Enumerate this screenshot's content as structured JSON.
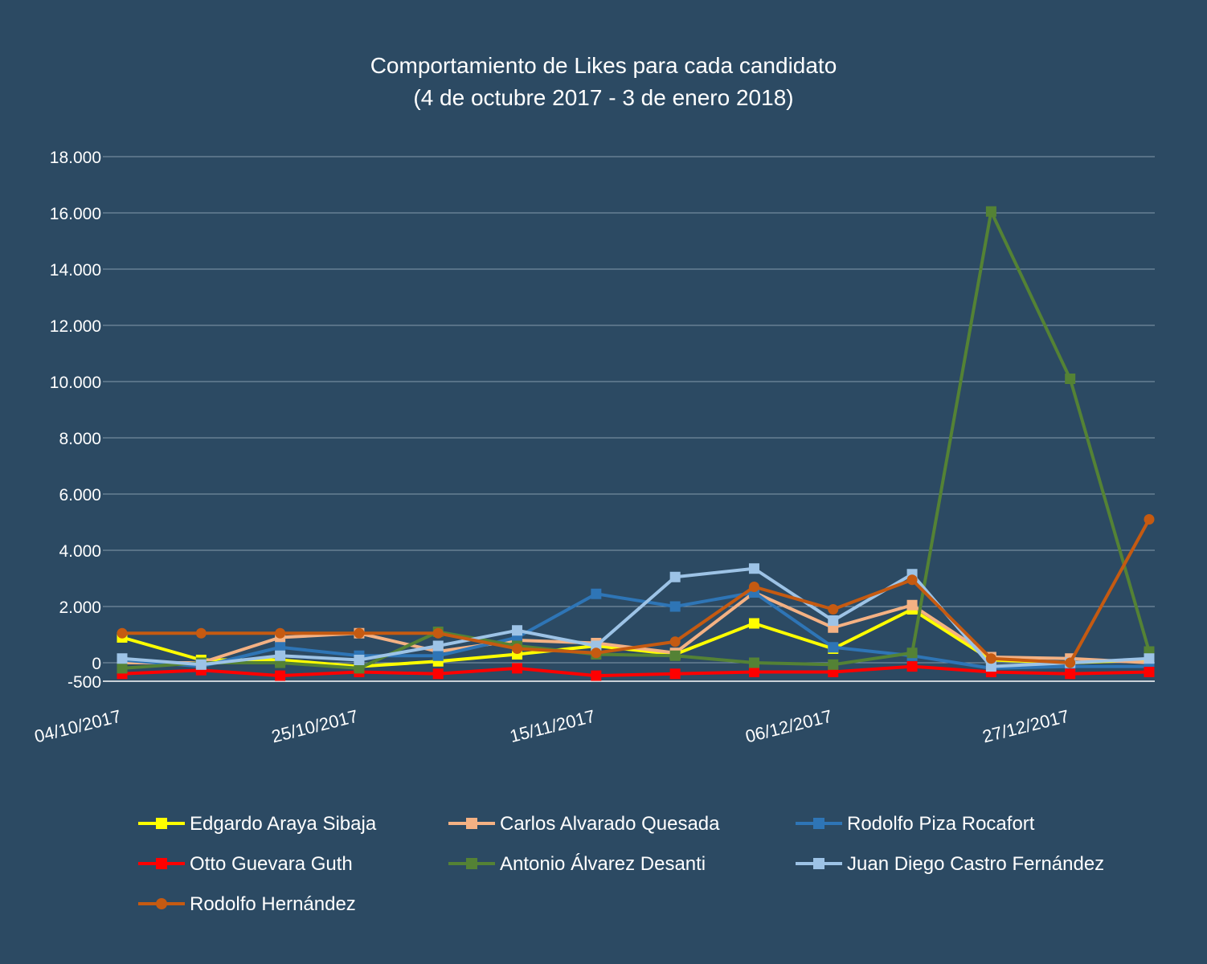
{
  "chart_data": {
    "type": "line",
    "title": "Comportamiento de Likes para cada candidato",
    "subtitle": "(4 de octubre 2017 - 3 de enero 2018)",
    "xlabel": "",
    "ylabel": "",
    "x": [
      "04/10/2017",
      "11/10/2017",
      "18/10/2017",
      "25/10/2017",
      "01/11/2017",
      "08/11/2017",
      "15/11/2017",
      "22/11/2017",
      "29/11/2017",
      "06/12/2017",
      "13/12/2017",
      "20/12/2017",
      "27/12/2017",
      "03/01/2018"
    ],
    "x_tick_labels": [
      "04/10/2017",
      "25/10/2017",
      "15/11/2017",
      "06/12/2017",
      "27/12/2017"
    ],
    "y_tick_values": [
      -500,
      0,
      2000,
      4000,
      6000,
      8000,
      10000,
      12000,
      14000,
      16000,
      18000
    ],
    "y_tick_labels": [
      "-500",
      "0",
      "2.000",
      "4.000",
      "6.000",
      "8.000",
      "10.000",
      "12.000",
      "14.000",
      "16.000",
      "18.000"
    ],
    "ylim": [
      -500,
      18000
    ],
    "grid": "horizontal",
    "legend_position": "bottom",
    "series": [
      {
        "name": "Edgardo Araya Sibaja",
        "color": "#ffff00",
        "marker": "square",
        "values": [
          900,
          100,
          100,
          -100,
          50,
          300,
          600,
          300,
          1400,
          500,
          1900,
          100,
          0,
          100
        ]
      },
      {
        "name": "Carlos Alvarado Quesada",
        "color": "#f4b183",
        "marker": "square",
        "values": [
          0,
          0,
          900,
          1050,
          400,
          800,
          700,
          350,
          2500,
          1250,
          2050,
          200,
          150,
          0
        ]
      },
      {
        "name": "Rodolfo Piza Rocafort",
        "color": "#2e75b6",
        "marker": "square",
        "values": [
          100,
          -100,
          550,
          250,
          250,
          900,
          2450,
          2000,
          2500,
          550,
          250,
          -150,
          -100,
          -100
        ]
      },
      {
        "name": "Otto Guevara Guth",
        "color": "#ff0000",
        "marker": "square",
        "values": [
          -300,
          -200,
          -350,
          -250,
          -300,
          -150,
          -350,
          -300,
          -250,
          -250,
          -100,
          -250,
          -300,
          -250
        ]
      },
      {
        "name": "Antonio Álvarez Desanti",
        "color": "#548235",
        "marker": "square",
        "values": [
          -150,
          0,
          0,
          -150,
          1100,
          600,
          300,
          250,
          0,
          -50,
          350,
          16050,
          10100,
          400
        ]
      },
      {
        "name": "Juan Diego Castro Fernández",
        "color": "#9dc3e6",
        "marker": "square",
        "values": [
          150,
          -50,
          250,
          100,
          600,
          1150,
          600,
          3050,
          3350,
          1500,
          3150,
          -100,
          0,
          150
        ]
      },
      {
        "name": "Rodolfo Hernández",
        "color": "#c55a11",
        "marker": "circle",
        "values": [
          1050,
          1050,
          1050,
          1050,
          1050,
          500,
          350,
          750,
          2700,
          1900,
          2950,
          150,
          0,
          5100
        ]
      }
    ]
  }
}
